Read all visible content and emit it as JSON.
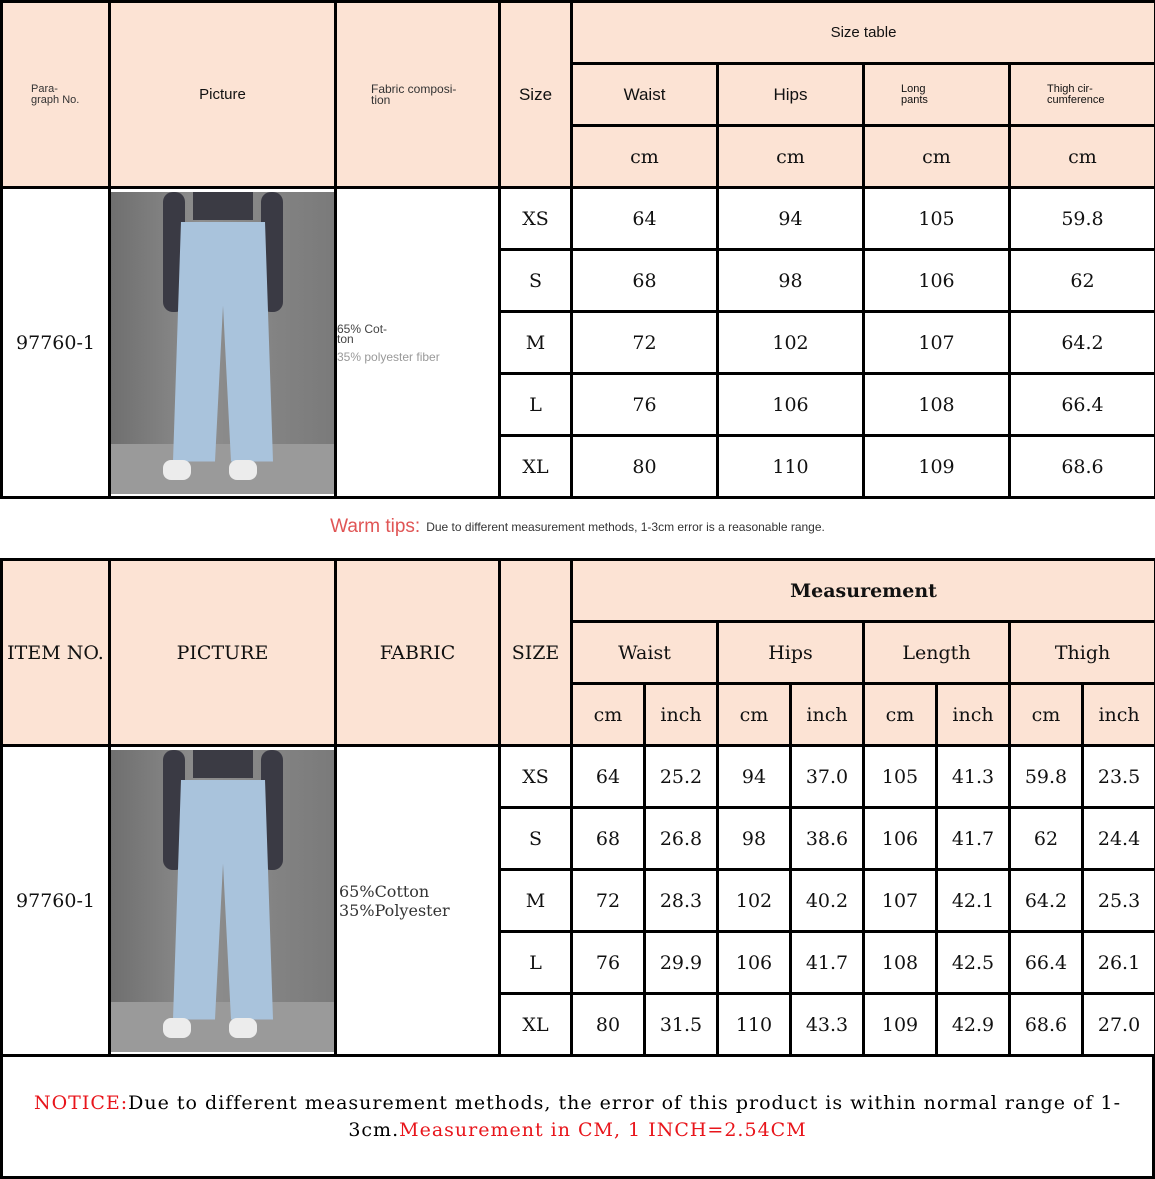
{
  "table1": {
    "headers": {
      "item": "Para-\ngraph No.",
      "picture": "Picture",
      "fabric": "Fabric composi-\ntion",
      "size": "Size",
      "size_table": "Size table"
    },
    "measures": [
      "Waist",
      "Hips",
      "Long\npants",
      "Thigh cir-\ncumference"
    ],
    "unit": "cm",
    "item_no": "97760-1",
    "fabric_line1": "65% Cot-\nton",
    "fabric_line2": "35% polyester fiber",
    "rows": [
      [
        "XS",
        "64",
        "94",
        "105",
        "59.8"
      ],
      [
        "S",
        "68",
        "98",
        "106",
        "62"
      ],
      [
        "M",
        "72",
        "102",
        "107",
        "64.2"
      ],
      [
        "L",
        "76",
        "106",
        "108",
        "66.4"
      ],
      [
        "XL",
        "80",
        "110",
        "109",
        "68.6"
      ]
    ]
  },
  "warm_tips": {
    "label": "Warm tips:",
    "text": "Due to different measurement methods, 1-3cm error is a reasonable range."
  },
  "table2": {
    "headers": {
      "item": "ITEM NO.",
      "picture": "PICTURE",
      "fabric": "FABRIC",
      "size": "SIZE",
      "measurement": "Measurement"
    },
    "measures": [
      "Waist",
      "Hips",
      "Length",
      "Thigh"
    ],
    "units": [
      "cm",
      "inch"
    ],
    "item_no": "97760-1",
    "fabric": "65%Cotton\n35%Polyester",
    "rows": [
      [
        "XS",
        "64",
        "25.2",
        "94",
        "37.0",
        "105",
        "41.3",
        "59.8",
        "23.5"
      ],
      [
        "S",
        "68",
        "26.8",
        "98",
        "38.6",
        "106",
        "41.7",
        "62",
        "24.4"
      ],
      [
        "M",
        "72",
        "28.3",
        "102",
        "40.2",
        "107",
        "42.1",
        "64.2",
        "25.3"
      ],
      [
        "L",
        "76",
        "29.9",
        "106",
        "41.7",
        "108",
        "42.5",
        "66.4",
        "26.1"
      ],
      [
        "XL",
        "80",
        "31.5",
        "110",
        "43.3",
        "109",
        "42.9",
        "68.6",
        "27.0"
      ]
    ]
  },
  "notice": {
    "label": "NOTICE:",
    "text": "Due to different measurement methods, the error of this product is within normal range of 1-3cm.",
    "highlight": "Measurement in CM, 1 INCH=2.54CM"
  },
  "colors": {
    "header_bg": "#fce3d4",
    "accent_red": "#e8151b",
    "tips_red": "#e05555"
  }
}
